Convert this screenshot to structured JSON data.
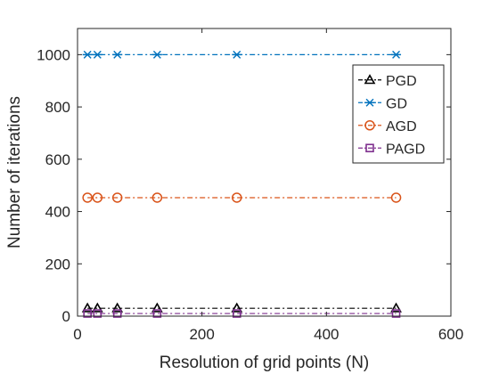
{
  "chart_data": {
    "type": "line",
    "xlabel": "Resolution of grid points (N)",
    "ylabel": "Number of iterations",
    "xlim": [
      0,
      600
    ],
    "ylim": [
      0,
      1100
    ],
    "xticks": [
      0,
      200,
      400,
      600
    ],
    "yticks": [
      0,
      200,
      400,
      600,
      800,
      1000
    ],
    "grid": false,
    "legend_position": "top-right",
    "x": [
      16,
      32,
      64,
      128,
      256,
      512
    ],
    "series": [
      {
        "name": "PGD",
        "values": [
          30,
          30,
          30,
          30,
          30,
          30
        ],
        "color": "#000000",
        "marker": "triangle",
        "line": "dash-dot"
      },
      {
        "name": "GD",
        "values": [
          1000,
          1000,
          1000,
          1000,
          1000,
          1000
        ],
        "color": "#0072BD",
        "marker": "asterisk",
        "line": "dash-dot"
      },
      {
        "name": "AGD",
        "values": [
          453,
          453,
          453,
          453,
          453,
          453
        ],
        "color": "#D95319",
        "marker": "circle",
        "line": "dash-dot"
      },
      {
        "name": "PAGD",
        "values": [
          10,
          10,
          10,
          10,
          10,
          10
        ],
        "color": "#7E2F8E",
        "marker": "square",
        "line": "dash-dot"
      }
    ]
  }
}
